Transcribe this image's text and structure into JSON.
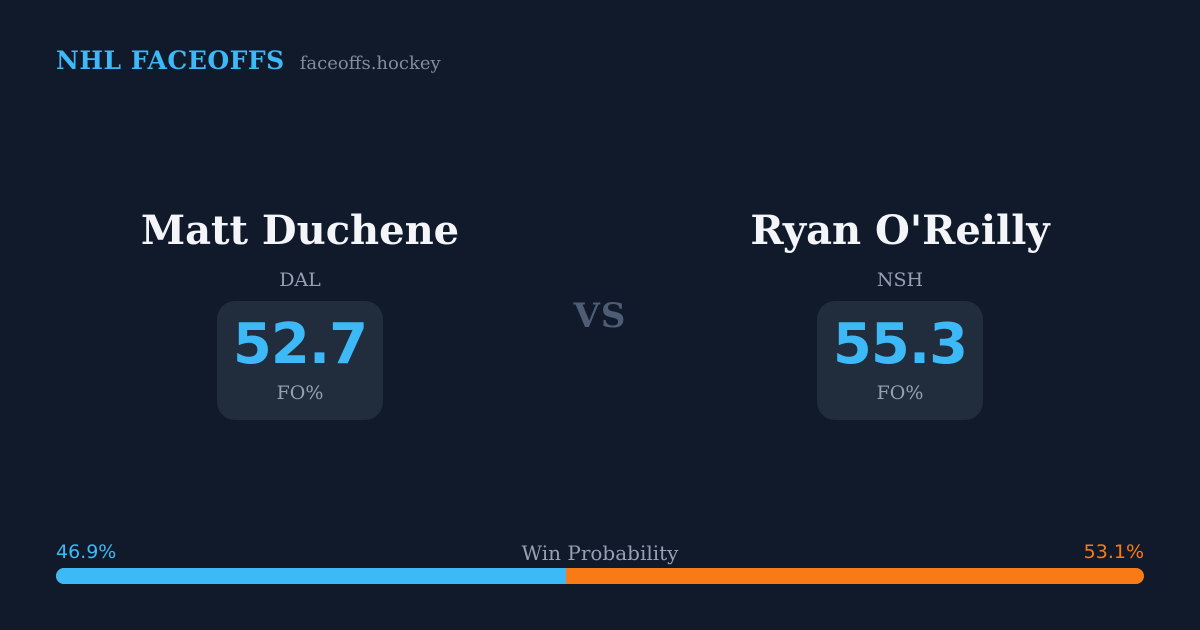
{
  "colors": {
    "background": "#111a2b",
    "card": "#212c3c",
    "accent_blue": "#3cb9f6",
    "accent_orange": "#f97b16",
    "text_primary": "#f3f5f8",
    "text_muted": "#96a0b2",
    "vs_gray": "#4e5c74",
    "site_gray": "#828c9d"
  },
  "header": {
    "brand": "NHL FACEOFFS",
    "site": "faceoffs.hockey"
  },
  "matchup": {
    "vs_label": "VS",
    "players": [
      {
        "name": "Matt Duchene",
        "team": "DAL",
        "stat_value": "52.7",
        "stat_label": "FO%"
      },
      {
        "name": "Ryan O'Reilly",
        "team": "NSH",
        "stat_value": "55.3",
        "stat_label": "FO%"
      }
    ]
  },
  "win_probability": {
    "label": "Win Probability",
    "left": {
      "value": "46.9%",
      "width": "46.9%"
    },
    "right": {
      "value": "53.1%",
      "width": "53.1%"
    }
  },
  "chart_data": {
    "type": "bar",
    "title": "Win Probability",
    "categories": [
      "Matt Duchene (DAL)",
      "Ryan O'Reilly (NSH)"
    ],
    "series": [
      {
        "name": "Faceoff Win % (FO%)",
        "values": [
          52.7,
          55.3
        ]
      },
      {
        "name": "Win Probability %",
        "values": [
          46.9,
          53.1
        ]
      }
    ],
    "orientation": "horizontal-stacked",
    "bar_colors": [
      "#3cb9f6",
      "#f97b16"
    ],
    "xlim": [
      0,
      100
    ],
    "legend_position": "none",
    "grid": false
  }
}
